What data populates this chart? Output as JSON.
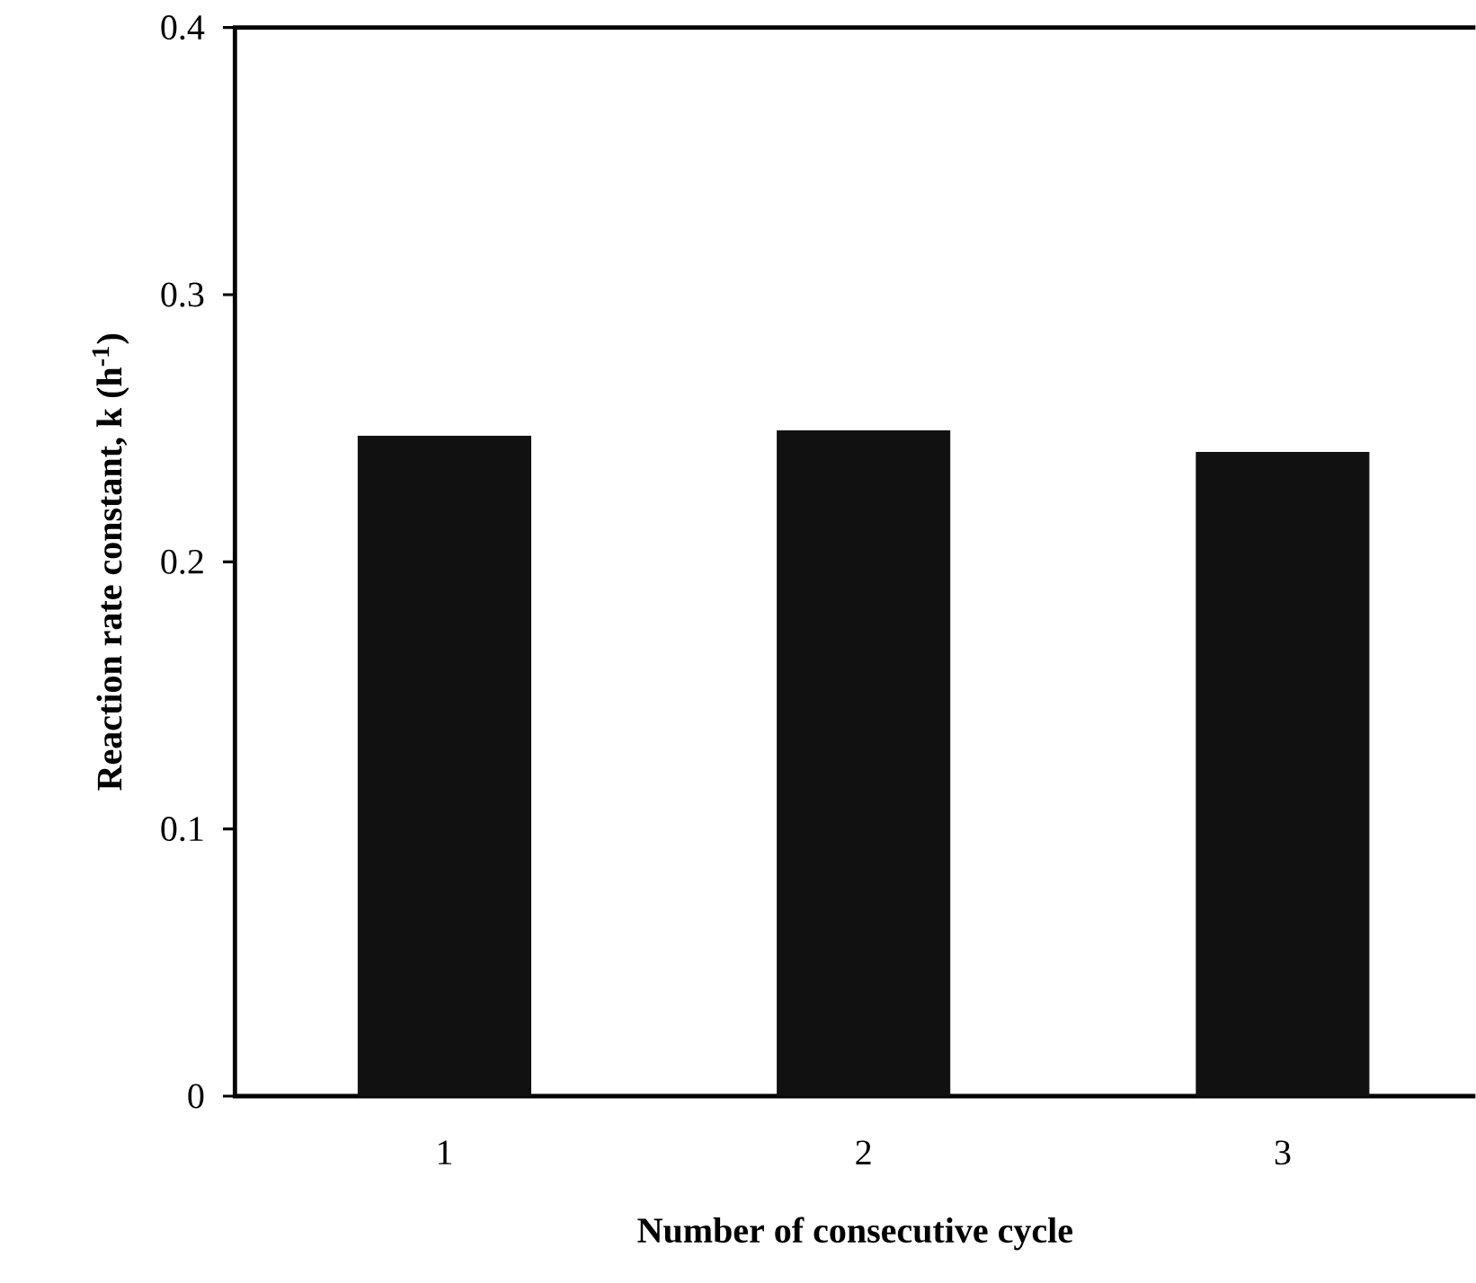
{
  "chart_data": {
    "type": "bar",
    "xlabel": "Number of consecutive cycle",
    "ylabel": "Reaction rate constant, k (h$^{-1}$)",
    "categories": [
      "1",
      "2",
      "3"
    ],
    "values": [
      0.247,
      0.249,
      0.241
    ],
    "color": "#111111",
    "ylim": [
      0,
      0.4
    ],
    "yticks": [
      0,
      0.1,
      0.2,
      0.3,
      0.4
    ],
    "grid": false
  }
}
